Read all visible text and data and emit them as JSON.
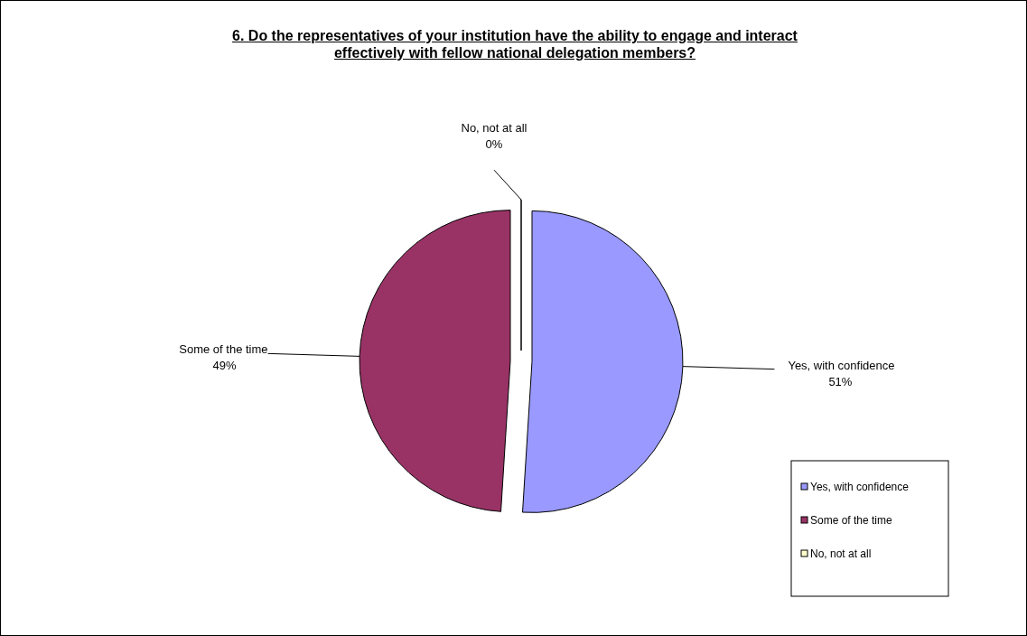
{
  "chart_data": {
    "type": "pie",
    "title": "6.  Do the representatives of your institution have the ability to engage and interact effectively with fellow national delegation members?",
    "categories": [
      "Yes, with confidence",
      "Some of the time",
      "No, not at all"
    ],
    "values": [
      51,
      49,
      0
    ],
    "colors": [
      "#9999ff",
      "#993366",
      "#ffffcc"
    ],
    "value_labels": [
      "51%",
      "49%",
      "0%"
    ],
    "legend": "bottom right"
  }
}
